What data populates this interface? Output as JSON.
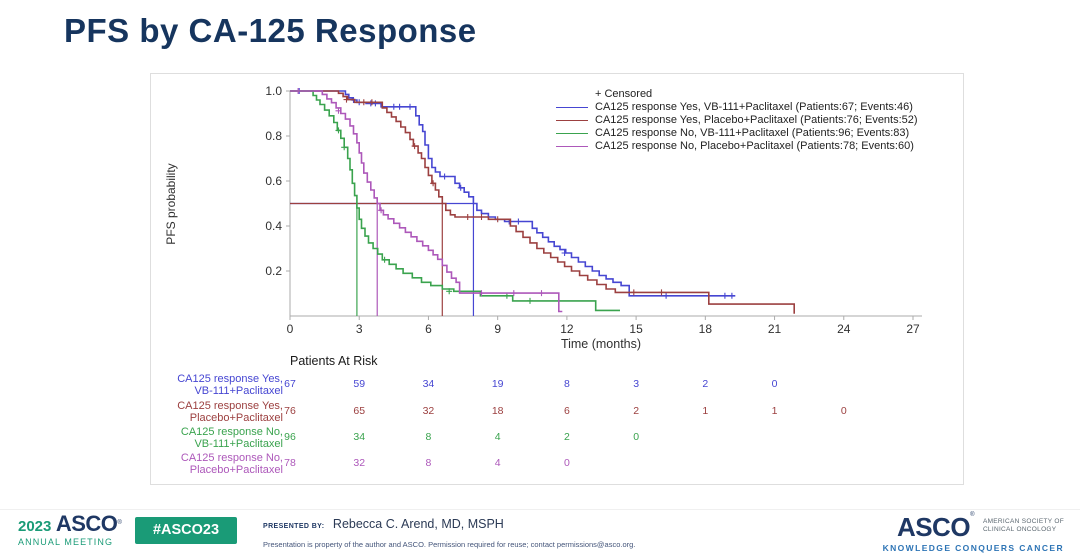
{
  "slide": {
    "title": "PFS by CA-125 Response"
  },
  "chart_data": {
    "type": "line",
    "subtype": "kaplan-meier-step",
    "title": "",
    "xlabel": "Time (months)",
    "ylabel": "PFS probability",
    "xlim": [
      0,
      27
    ],
    "ylim": [
      0,
      1.0
    ],
    "xticks": [
      0,
      3,
      6,
      9,
      12,
      15,
      18,
      21,
      24,
      27
    ],
    "yticks": [
      "1.0",
      "0.8",
      "0.6",
      "0.4",
      "0.2"
    ],
    "grid": false,
    "legend_position": "top-right-inside",
    "legend_censored": "+ Censored",
    "median_reference_level": 0.5,
    "series": [
      {
        "name": "ca125-yes-vb111",
        "label": "CA125 response Yes, VB-111+Paclitaxel (Patients:67; Events:46)",
        "color": "#4646d2",
        "median_months": 7.95,
        "steps": [
          [
            0,
            1.0
          ],
          [
            2.3,
            1.0
          ],
          [
            2.4,
            0.985
          ],
          [
            2.55,
            0.97
          ],
          [
            2.7,
            0.96
          ],
          [
            2.9,
            0.95
          ],
          [
            3.3,
            0.945
          ],
          [
            3.85,
            0.945
          ],
          [
            3.95,
            0.93
          ],
          [
            5.3,
            0.93
          ],
          [
            5.45,
            0.89
          ],
          [
            5.6,
            0.85
          ],
          [
            5.75,
            0.82
          ],
          [
            5.85,
            0.76
          ],
          [
            6.0,
            0.7
          ],
          [
            6.15,
            0.66
          ],
          [
            6.3,
            0.64
          ],
          [
            6.5,
            0.62
          ],
          [
            7.05,
            0.62
          ],
          [
            7.15,
            0.59
          ],
          [
            7.35,
            0.57
          ],
          [
            7.55,
            0.55
          ],
          [
            7.75,
            0.53
          ],
          [
            7.95,
            0.5
          ],
          [
            8.1,
            0.47
          ],
          [
            8.3,
            0.455
          ],
          [
            8.6,
            0.44
          ],
          [
            8.9,
            0.43
          ],
          [
            9.3,
            0.42
          ],
          [
            10.3,
            0.42
          ],
          [
            10.5,
            0.39
          ],
          [
            10.7,
            0.37
          ],
          [
            10.95,
            0.35
          ],
          [
            11.2,
            0.33
          ],
          [
            11.45,
            0.31
          ],
          [
            11.7,
            0.295
          ],
          [
            11.95,
            0.28
          ],
          [
            12.2,
            0.26
          ],
          [
            12.5,
            0.24
          ],
          [
            12.8,
            0.22
          ],
          [
            13.1,
            0.2
          ],
          [
            13.4,
            0.18
          ],
          [
            13.7,
            0.165
          ],
          [
            14.0,
            0.15
          ],
          [
            14.35,
            0.135
          ],
          [
            14.7,
            0.09
          ],
          [
            19.3,
            0.09
          ]
        ],
        "censors": [
          [
            0.4,
            1.0
          ],
          [
            2.75,
            0.96
          ],
          [
            3.0,
            0.95
          ],
          [
            3.5,
            0.945
          ],
          [
            3.7,
            0.945
          ],
          [
            4.5,
            0.93
          ],
          [
            4.75,
            0.93
          ],
          [
            5.2,
            0.93
          ],
          [
            6.7,
            0.62
          ],
          [
            7.4,
            0.57
          ],
          [
            9.5,
            0.42
          ],
          [
            9.9,
            0.42
          ],
          [
            11.9,
            0.28
          ],
          [
            16.3,
            0.09
          ],
          [
            18.85,
            0.09
          ],
          [
            19.15,
            0.09
          ]
        ]
      },
      {
        "name": "ca125-yes-placebo",
        "label": "CA125 response Yes, Placebo+Paclitaxel (Patients:76; Events:52)",
        "color": "#9c4040",
        "median_months": 6.6,
        "steps": [
          [
            0,
            1.0
          ],
          [
            1.9,
            1.0
          ],
          [
            2.1,
            0.99
          ],
          [
            2.3,
            0.975
          ],
          [
            2.5,
            0.962
          ],
          [
            2.8,
            0.95
          ],
          [
            3.8,
            0.95
          ],
          [
            4.0,
            0.925
          ],
          [
            4.2,
            0.905
          ],
          [
            4.4,
            0.885
          ],
          [
            4.6,
            0.865
          ],
          [
            4.8,
            0.84
          ],
          [
            5.0,
            0.815
          ],
          [
            5.2,
            0.785
          ],
          [
            5.35,
            0.755
          ],
          [
            5.55,
            0.725
          ],
          [
            5.7,
            0.7
          ],
          [
            5.85,
            0.66
          ],
          [
            6.0,
            0.625
          ],
          [
            6.15,
            0.59
          ],
          [
            6.3,
            0.56
          ],
          [
            6.45,
            0.53
          ],
          [
            6.6,
            0.5
          ],
          [
            6.75,
            0.47
          ],
          [
            6.95,
            0.45
          ],
          [
            7.15,
            0.44
          ],
          [
            8.4,
            0.44
          ],
          [
            8.6,
            0.43
          ],
          [
            9.35,
            0.43
          ],
          [
            9.55,
            0.4
          ],
          [
            9.8,
            0.375
          ],
          [
            10.1,
            0.35
          ],
          [
            10.4,
            0.325
          ],
          [
            10.7,
            0.3
          ],
          [
            11.0,
            0.28
          ],
          [
            11.3,
            0.26
          ],
          [
            11.6,
            0.24
          ],
          [
            11.9,
            0.22
          ],
          [
            12.2,
            0.2
          ],
          [
            12.55,
            0.18
          ],
          [
            12.9,
            0.16
          ],
          [
            13.3,
            0.14
          ],
          [
            13.7,
            0.12
          ],
          [
            14.1,
            0.105
          ],
          [
            18.1,
            0.105
          ],
          [
            18.15,
            0.053
          ],
          [
            21.8,
            0.053
          ],
          [
            21.85,
            0.01
          ]
        ],
        "censors": [
          [
            2.45,
            0.962
          ],
          [
            3.2,
            0.95
          ],
          [
            3.55,
            0.95
          ],
          [
            5.4,
            0.755
          ],
          [
            6.2,
            0.59
          ],
          [
            7.7,
            0.44
          ],
          [
            8.3,
            0.44
          ],
          [
            9.0,
            0.43
          ],
          [
            14.9,
            0.105
          ],
          [
            16.1,
            0.105
          ]
        ]
      },
      {
        "name": "ca125-no-vb111",
        "label": "CA125 response No, VB-111+Paclitaxel (Patients:96; Events:83)",
        "color": "#3aa34e",
        "median_months": 2.9,
        "steps": [
          [
            0,
            1.0
          ],
          [
            0.85,
            1.0
          ],
          [
            1.0,
            0.98
          ],
          [
            1.15,
            0.96
          ],
          [
            1.3,
            0.94
          ],
          [
            1.5,
            0.915
          ],
          [
            1.7,
            0.89
          ],
          [
            1.9,
            0.86
          ],
          [
            2.05,
            0.825
          ],
          [
            2.2,
            0.79
          ],
          [
            2.35,
            0.75
          ],
          [
            2.5,
            0.7
          ],
          [
            2.6,
            0.65
          ],
          [
            2.7,
            0.59
          ],
          [
            2.8,
            0.535
          ],
          [
            2.9,
            0.48
          ],
          [
            3.0,
            0.43
          ],
          [
            3.1,
            0.39
          ],
          [
            3.25,
            0.355
          ],
          [
            3.4,
            0.325
          ],
          [
            3.6,
            0.3
          ],
          [
            3.8,
            0.275
          ],
          [
            4.0,
            0.25
          ],
          [
            4.3,
            0.23
          ],
          [
            4.6,
            0.21
          ],
          [
            4.9,
            0.19
          ],
          [
            5.3,
            0.17
          ],
          [
            5.7,
            0.15
          ],
          [
            6.1,
            0.135
          ],
          [
            6.6,
            0.12
          ],
          [
            7.1,
            0.11
          ],
          [
            8.2,
            0.11
          ],
          [
            8.25,
            0.09
          ],
          [
            9.6,
            0.09
          ],
          [
            9.65,
            0.067
          ],
          [
            13.2,
            0.067
          ],
          [
            13.25,
            0.025
          ],
          [
            14.3,
            0.025
          ]
        ],
        "censors": [
          [
            2.1,
            0.825
          ],
          [
            2.35,
            0.75
          ],
          [
            4.1,
            0.25
          ],
          [
            6.9,
            0.11
          ],
          [
            9.4,
            0.09
          ],
          [
            10.4,
            0.067
          ]
        ]
      },
      {
        "name": "ca125-no-placebo",
        "label": "CA125 response No, Placebo+Paclitaxel (Patients:78; Events:60)",
        "color": "#ad58ba",
        "median_months": 3.78,
        "steps": [
          [
            0,
            1.0
          ],
          [
            1.25,
            1.0
          ],
          [
            1.4,
            0.985
          ],
          [
            1.6,
            0.965
          ],
          [
            1.8,
            0.948
          ],
          [
            2.0,
            0.925
          ],
          [
            2.2,
            0.9
          ],
          [
            2.4,
            0.875
          ],
          [
            2.6,
            0.845
          ],
          [
            2.75,
            0.81
          ],
          [
            2.9,
            0.77
          ],
          [
            3.0,
            0.725
          ],
          [
            3.1,
            0.68
          ],
          [
            3.2,
            0.635
          ],
          [
            3.35,
            0.595
          ],
          [
            3.5,
            0.56
          ],
          [
            3.65,
            0.525
          ],
          [
            3.78,
            0.5
          ],
          [
            3.9,
            0.47
          ],
          [
            4.05,
            0.45
          ],
          [
            4.25,
            0.432
          ],
          [
            4.5,
            0.412
          ],
          [
            4.75,
            0.392
          ],
          [
            5.0,
            0.372
          ],
          [
            5.25,
            0.352
          ],
          [
            5.5,
            0.332
          ],
          [
            5.75,
            0.312
          ],
          [
            6.0,
            0.292
          ],
          [
            6.2,
            0.272
          ],
          [
            6.4,
            0.252
          ],
          [
            6.6,
            0.225
          ],
          [
            6.8,
            0.195
          ],
          [
            7.0,
            0.168
          ],
          [
            7.2,
            0.15
          ],
          [
            7.35,
            0.102
          ],
          [
            11.6,
            0.102
          ],
          [
            11.65,
            0.02
          ],
          [
            11.8,
            0.02
          ]
        ],
        "censors": [
          [
            0.35,
            1.0
          ],
          [
            2.1,
            0.912
          ],
          [
            3.95,
            0.47
          ],
          [
            8.3,
            0.102
          ],
          [
            9.7,
            0.102
          ],
          [
            10.9,
            0.102
          ]
        ]
      }
    ],
    "at_risk": {
      "title": "Patients At Risk",
      "times": [
        0,
        3,
        6,
        9,
        12,
        15,
        18,
        21,
        24
      ],
      "rows": [
        {
          "label_line1": "CA125 response Yes,",
          "label_line2": "VB-111+Paclitaxel",
          "color": "#4646d2",
          "counts": [
            67,
            59,
            34,
            19,
            8,
            3,
            2,
            0
          ]
        },
        {
          "label_line1": "CA125 response Yes,",
          "label_line2": "Placebo+Paclitaxel",
          "color": "#9c4040",
          "counts": [
            76,
            65,
            32,
            18,
            6,
            2,
            1,
            1,
            0
          ]
        },
        {
          "label_line1": "CA125 response No,",
          "label_line2": "VB-111+Paclitaxel",
          "color": "#3aa34e",
          "counts": [
            96,
            34,
            8,
            4,
            2,
            0
          ]
        },
        {
          "label_line1": "CA125 response No,",
          "label_line2": "Placebo+Paclitaxel",
          "color": "#ad58ba",
          "counts": [
            78,
            32,
            8,
            4,
            0
          ]
        }
      ]
    }
  },
  "footer": {
    "year": "2023",
    "logo_asco": "ASCO",
    "logo_sub": "ANNUAL MEETING",
    "hashtag": "#ASCO23",
    "presented_by_label": "PRESENTED BY:",
    "presenter": "Rebecca C. Arend, MD, MSPH",
    "disclaimer": "Presentation is property of the author and ASCO. Permission required for reuse; contact permissions@asco.org.",
    "right_logo": "ASCO",
    "right_logo_line1": "AMERICAN SOCIETY OF",
    "right_logo_line2": "CLINICAL ONCOLOGY",
    "tagline": "KNOWLEDGE CONQUERS CANCER",
    "colors": {
      "asco_green": "#1a9b77",
      "asco_navy": "#1f3864",
      "tagline_blue": "#2d74b5",
      "title_navy": "#16355e"
    }
  }
}
